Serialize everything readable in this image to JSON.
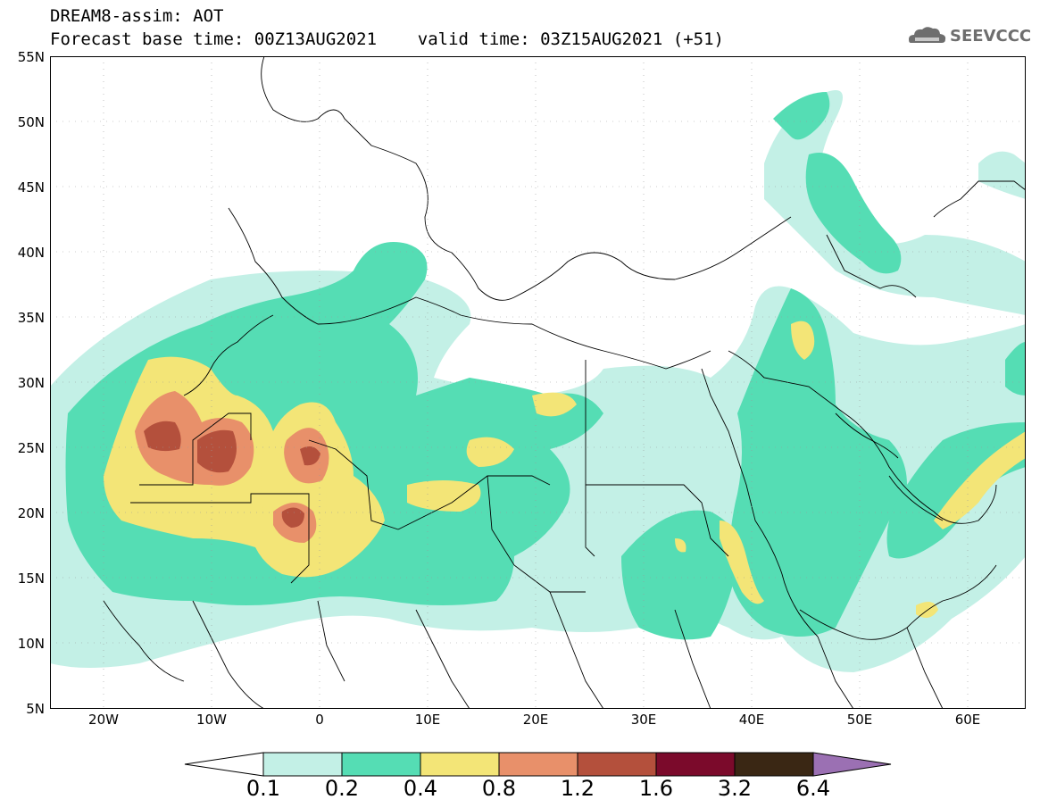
{
  "header": {
    "title": "DREAM8-assim: AOT",
    "subtitle": "Forecast base time: 00Z13AUG2021    valid time: 03Z15AUG2021 (+51)",
    "logo_text": "SEEVCCC"
  },
  "axes": {
    "lat_labels": [
      "55N",
      "50N",
      "45N",
      "40N",
      "35N",
      "30N",
      "25N",
      "20N",
      "15N",
      "10N",
      "5N"
    ],
    "lon_labels": [
      "20W",
      "10W",
      "0",
      "10E",
      "20E",
      "30E",
      "40E",
      "50E",
      "60E"
    ]
  },
  "colorbar": {
    "labels": [
      "0.1",
      "0.2",
      "0.4",
      "0.8",
      "1.2",
      "1.6",
      "3.2",
      "6.4"
    ],
    "colors": [
      "#ffffff",
      "#c3f0e6",
      "#55ddb4",
      "#f3e577",
      "#e8906a",
      "#b4503c",
      "#7b0a2b",
      "#3a2714",
      "#9b70b3"
    ]
  },
  "colors": {
    "level1": "#c3f0e6",
    "level2": "#55ddb4",
    "level3": "#f3e577",
    "level4": "#e8906a",
    "level5": "#b4503c",
    "border": "#000000"
  }
}
